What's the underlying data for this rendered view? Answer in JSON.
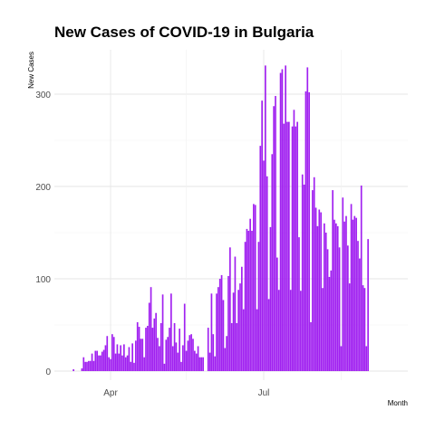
{
  "chart_data": {
    "type": "bar",
    "title": "New Cases of COVID-19 in Bulgaria",
    "xlabel": "Month",
    "ylabel": "New Cases",
    "x_tick_labels": [
      "Apr",
      "Jul"
    ],
    "y_tick_labels": [
      "0",
      "100",
      "200",
      "300"
    ],
    "ylim": [
      0,
      345
    ],
    "grid": true,
    "bar_color": "#A020F0",
    "x_start": "2020-03-08",
    "values": [
      0,
      0,
      2,
      0,
      0,
      0,
      0,
      3,
      15,
      10,
      10,
      11,
      11,
      19,
      11,
      22,
      22,
      17,
      17,
      21,
      23,
      28,
      38,
      15,
      13,
      40,
      37,
      19,
      29,
      19,
      28,
      17,
      29,
      15,
      17,
      26,
      10,
      30,
      9,
      33,
      53,
      48,
      35,
      35,
      15,
      47,
      49,
      74,
      91,
      47,
      57,
      63,
      36,
      27,
      52,
      83,
      8,
      34,
      37,
      47,
      84,
      27,
      52,
      31,
      20,
      46,
      10,
      28,
      73,
      22,
      33,
      39,
      40,
      35,
      22,
      19,
      27,
      15,
      15,
      15,
      0,
      0,
      47,
      20,
      84,
      40,
      16,
      84,
      91,
      100,
      104,
      77,
      25,
      38,
      103,
      134,
      52,
      85,
      124,
      52,
      88,
      95,
      113,
      67,
      140,
      154,
      152,
      165,
      152,
      181,
      180,
      67,
      140,
      244,
      293,
      228,
      331,
      211,
      78,
      156,
      235,
      287,
      298,
      123,
      88,
      323,
      327,
      268,
      331,
      270,
      270,
      88,
      265,
      283,
      265,
      270,
      145,
      87,
      213,
      202,
      303,
      329,
      302,
      53,
      196,
      210,
      177,
      157,
      175,
      172,
      90,
      160,
      150,
      132,
      102,
      109,
      196,
      164,
      160,
      157,
      134,
      27,
      188,
      162,
      168,
      136,
      95,
      181,
      164,
      168,
      166,
      141,
      122,
      201,
      93,
      90,
      27,
      143
    ]
  }
}
